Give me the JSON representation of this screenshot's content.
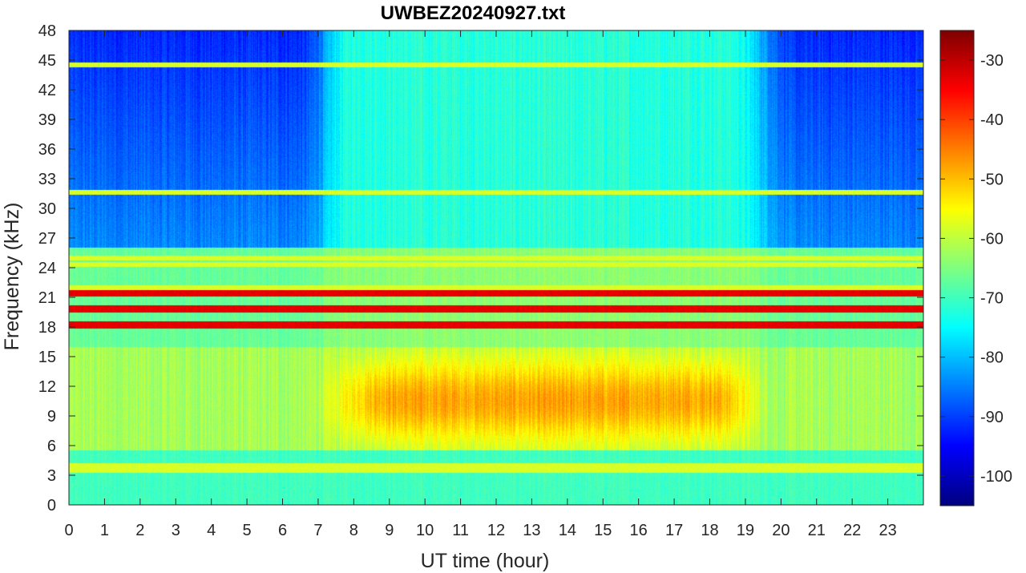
{
  "chart_data": {
    "type": "heatmap",
    "title": "UWBEZ20240927.txt",
    "xlabel": "UT time (hour)",
    "ylabel": "Frequency (kHz)",
    "xlim": [
      0,
      24
    ],
    "ylim": [
      0,
      48
    ],
    "x_ticks": [
      0,
      1,
      2,
      3,
      4,
      5,
      6,
      7,
      8,
      9,
      10,
      11,
      12,
      13,
      14,
      15,
      16,
      17,
      18,
      19,
      20,
      21,
      22,
      23
    ],
    "y_ticks": [
      0,
      3,
      6,
      9,
      12,
      15,
      18,
      21,
      24,
      27,
      30,
      33,
      36,
      39,
      42,
      45,
      48
    ],
    "colorbar": {
      "colormap": "jet",
      "range": [
        -105,
        -25
      ],
      "ticks": [
        -100,
        -90,
        -80,
        -70,
        -60,
        -50,
        -40,
        -30
      ]
    },
    "features": {
      "strong_lines_khz": [
        19.8,
        21.4,
        18.2
      ],
      "moderate_lines_khz": [
        24.3,
        25.0,
        22.0,
        4.0,
        3.5,
        44.5,
        31.6
      ],
      "daytime_enhancement": {
        "hours": [
          7.5,
          19.5
        ],
        "freq_khz": [
          6,
          16
        ],
        "peak_level": -48
      },
      "night_background_high_freq": -92,
      "day_background_high_freq": -72
    }
  }
}
